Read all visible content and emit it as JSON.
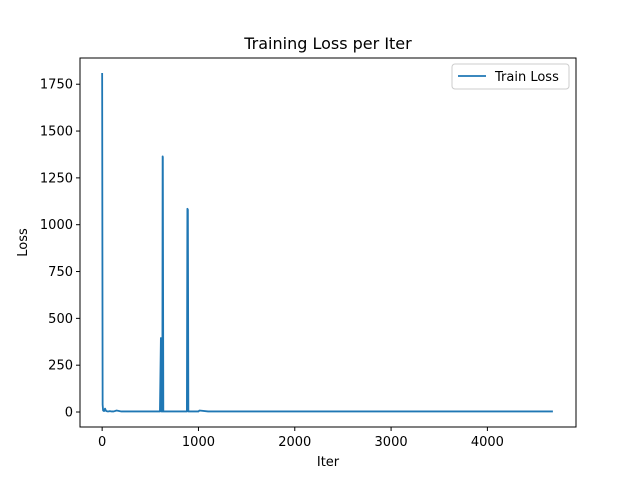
{
  "chart_data": {
    "type": "line",
    "title": "Training Loss per Iter",
    "xlabel": "Iter",
    "ylabel": "Loss",
    "xlim": [
      -230,
      4920
    ],
    "ylim": [
      -80,
      1890
    ],
    "xticks": [
      0,
      1000,
      2000,
      3000,
      4000
    ],
    "yticks": [
      0,
      250,
      500,
      750,
      1000,
      1250,
      1500,
      1750
    ],
    "grid": false,
    "legend_position": "top-right",
    "series": [
      {
        "name": "Train Loss",
        "color": "#1f77b4",
        "x": [
          0,
          5,
          10,
          20,
          30,
          40,
          50,
          60,
          80,
          100,
          120,
          150,
          200,
          300,
          400,
          500,
          600,
          610,
          615,
          620,
          625,
          628,
          630,
          635,
          640,
          650,
          700,
          800,
          850,
          880,
          885,
          890,
          895,
          900,
          950,
          1000,
          1010,
          1100,
          1500,
          2000,
          2500,
          3000,
          3500,
          4000,
          4500,
          4680
        ],
        "y": [
          1810,
          40,
          8,
          5,
          18,
          6,
          4,
          3,
          5,
          3,
          3,
          8,
          3,
          3,
          3,
          3,
          3,
          395,
          3,
          300,
          3,
          1365,
          1360,
          3,
          3,
          3,
          3,
          3,
          3,
          3,
          1085,
          1080,
          3,
          3,
          3,
          3,
          8,
          3,
          3,
          3,
          3,
          3,
          3,
          3,
          3,
          3
        ]
      }
    ]
  }
}
